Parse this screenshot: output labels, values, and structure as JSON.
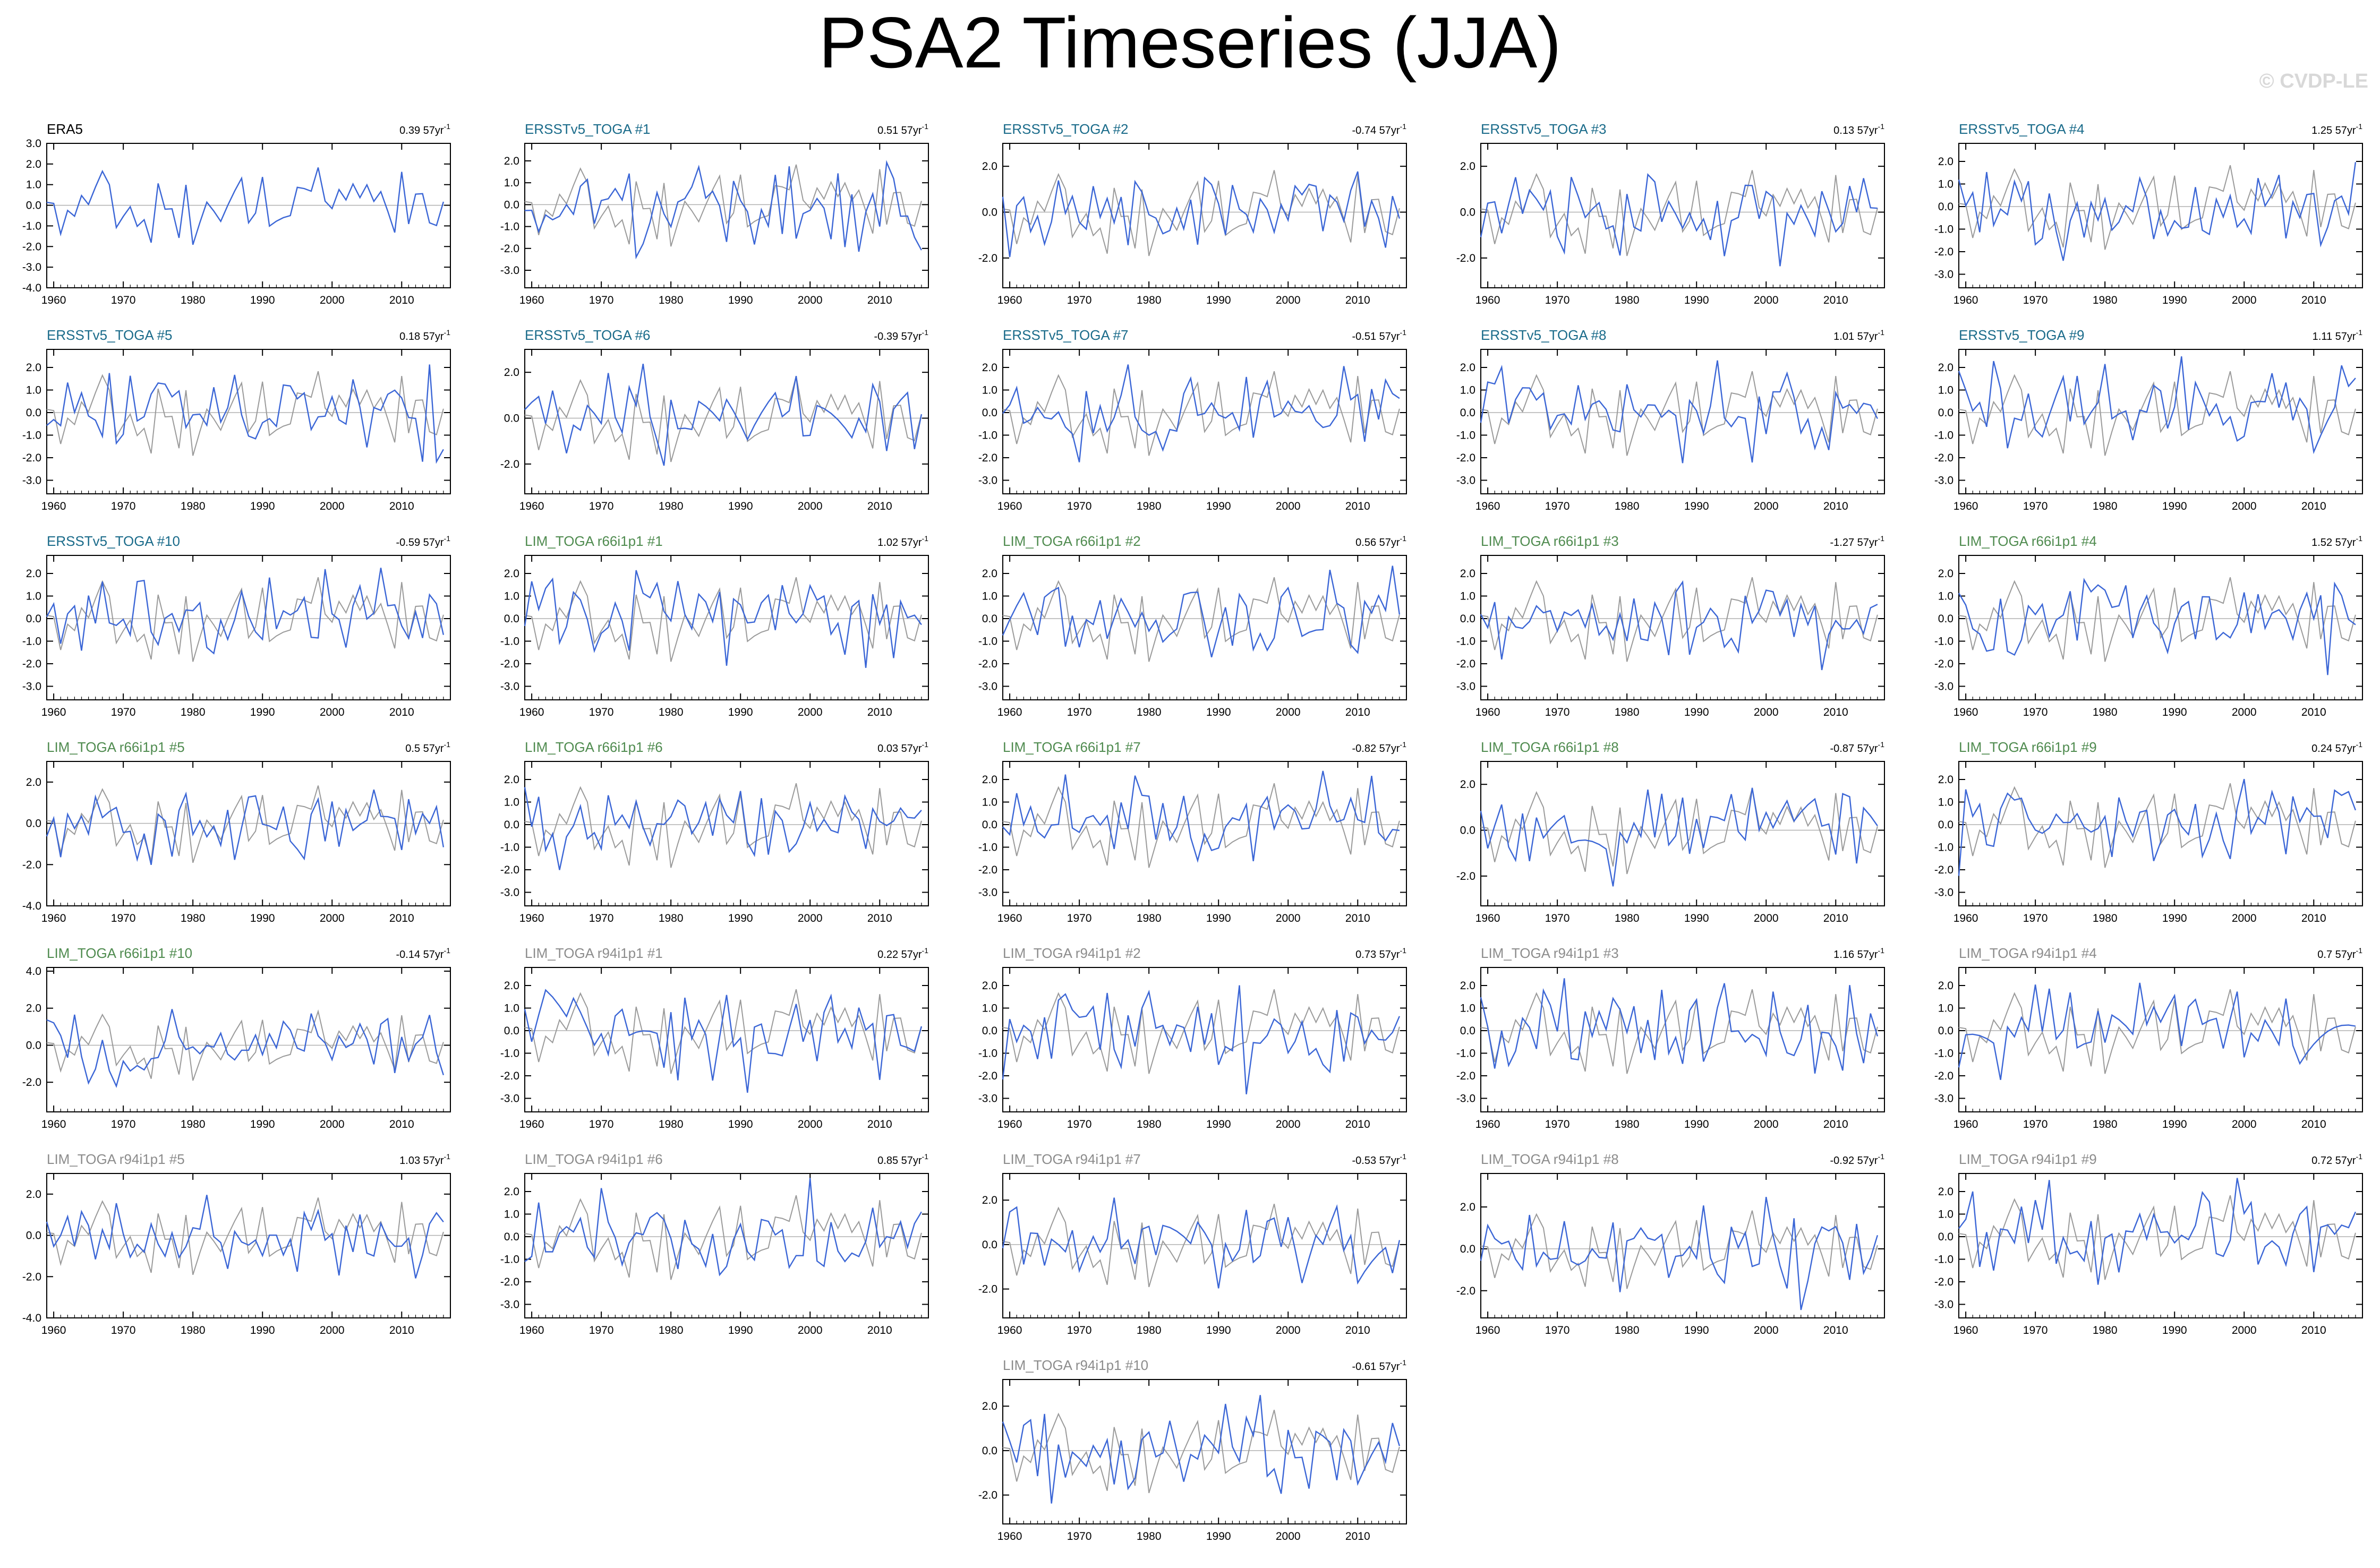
{
  "title": "PSA2 Timeseries (JJA)",
  "watermark": "© CVDP-LE",
  "trend_unit": "57yr",
  "trend_exponent": "-1",
  "colors": {
    "reference": "#9a9a9a",
    "model": "#3b66d6",
    "title_ersst": "#1a6b8a",
    "title_lim66": "#4f8b4f",
    "title_lim94": "#8c8c8c",
    "title_era5": "#000000"
  },
  "chart_data": [
    {
      "type": "line",
      "title": "ERA5",
      "trend": "0.39",
      "title_class": "era5",
      "ylim": [
        -4.0,
        3.0
      ],
      "yticks": [
        "3.0",
        "2.0",
        "1.0",
        "0.0",
        "-1.0",
        "-2.0",
        "-3.0",
        "-4.0"
      ],
      "xticks": [
        "1960",
        "1970",
        "1980",
        "1990",
        "2000",
        "2010"
      ],
      "xlim": [
        1959,
        2017
      ],
      "seed": 1
    },
    {
      "type": "line",
      "title": "ERSSTv5_TOGA #1",
      "trend": "0.51",
      "title_class": "ersst",
      "ylim": [
        -3.8,
        2.8
      ],
      "yticks": [
        "2.0",
        "1.0",
        "0.0",
        "-1.0",
        "-2.0",
        "-3.0"
      ],
      "xticks": [
        "1960",
        "1970",
        "1980",
        "1990",
        "2000",
        "2010"
      ],
      "xlim": [
        1959,
        2017
      ],
      "seed": 2
    },
    {
      "type": "line",
      "title": "ERSSTv5_TOGA #2",
      "trend": "-0.74",
      "title_class": "ersst",
      "ylim": [
        -3.3,
        3.0
      ],
      "yticks": [
        "2.0",
        "0.0",
        "-2.0"
      ],
      "xticks": [
        "1960",
        "1970",
        "1980",
        "1990",
        "2000",
        "2010"
      ],
      "xlim": [
        1959,
        2017
      ],
      "seed": 3
    },
    {
      "type": "line",
      "title": "ERSSTv5_TOGA #3",
      "trend": "0.13",
      "title_class": "ersst",
      "ylim": [
        -3.3,
        3.0
      ],
      "yticks": [
        "2.0",
        "0.0",
        "-2.0"
      ],
      "xticks": [
        "1960",
        "1970",
        "1980",
        "1990",
        "2000",
        "2010"
      ],
      "xlim": [
        1959,
        2017
      ],
      "seed": 4
    },
    {
      "type": "line",
      "title": "ERSSTv5_TOGA #4",
      "trend": "1.25",
      "title_class": "ersst",
      "ylim": [
        -3.6,
        2.8
      ],
      "yticks": [
        "2.0",
        "1.0",
        "0.0",
        "-1.0",
        "-2.0",
        "-3.0"
      ],
      "xticks": [
        "1960",
        "1970",
        "1980",
        "1990",
        "2000",
        "2010"
      ],
      "xlim": [
        1959,
        2017
      ],
      "seed": 5
    },
    {
      "type": "line",
      "title": "ERSSTv5_TOGA #5",
      "trend": "0.18",
      "title_class": "ersst",
      "ylim": [
        -3.6,
        2.8
      ],
      "yticks": [
        "2.0",
        "1.0",
        "0.0",
        "-1.0",
        "-2.0",
        "-3.0"
      ],
      "xticks": [
        "1960",
        "1970",
        "1980",
        "1990",
        "2000",
        "2010"
      ],
      "xlim": [
        1959,
        2017
      ],
      "seed": 6
    },
    {
      "type": "line",
      "title": "ERSSTv5_TOGA #6",
      "trend": "-0.39",
      "title_class": "ersst",
      "ylim": [
        -3.3,
        3.0
      ],
      "yticks": [
        "2.0",
        "0.0",
        "-2.0"
      ],
      "xticks": [
        "1960",
        "1970",
        "1980",
        "1990",
        "2000",
        "2010"
      ],
      "xlim": [
        1959,
        2017
      ],
      "seed": 7
    },
    {
      "type": "line",
      "title": "ERSSTv5_TOGA #7",
      "trend": "-0.51",
      "title_class": "ersst",
      "ylim": [
        -3.6,
        2.8
      ],
      "yticks": [
        "2.0",
        "1.0",
        "0.0",
        "-1.0",
        "-2.0",
        "-3.0"
      ],
      "xticks": [
        "1960",
        "1970",
        "1980",
        "1990",
        "2000",
        "2010"
      ],
      "xlim": [
        1959,
        2017
      ],
      "seed": 8
    },
    {
      "type": "line",
      "title": "ERSSTv5_TOGA #8",
      "trend": "1.01",
      "title_class": "ersst",
      "ylim": [
        -3.6,
        2.8
      ],
      "yticks": [
        "2.0",
        "1.0",
        "0.0",
        "-1.0",
        "-2.0",
        "-3.0"
      ],
      "xticks": [
        "1960",
        "1970",
        "1980",
        "1990",
        "2000",
        "2010"
      ],
      "xlim": [
        1959,
        2017
      ],
      "seed": 9
    },
    {
      "type": "line",
      "title": "ERSSTv5_TOGA #9",
      "trend": "1.11",
      "title_class": "ersst",
      "ylim": [
        -3.6,
        2.8
      ],
      "yticks": [
        "2.0",
        "1.0",
        "0.0",
        "-1.0",
        "-2.0",
        "-3.0"
      ],
      "xticks": [
        "1960",
        "1970",
        "1980",
        "1990",
        "2000",
        "2010"
      ],
      "xlim": [
        1959,
        2017
      ],
      "seed": 10
    },
    {
      "type": "line",
      "title": "ERSSTv5_TOGA #10",
      "trend": "-0.59",
      "title_class": "ersst",
      "ylim": [
        -3.6,
        2.8
      ],
      "yticks": [
        "2.0",
        "1.0",
        "0.0",
        "-1.0",
        "-2.0",
        "-3.0"
      ],
      "xticks": [
        "1960",
        "1970",
        "1980",
        "1990",
        "2000",
        "2010"
      ],
      "xlim": [
        1959,
        2017
      ],
      "seed": 11
    },
    {
      "type": "line",
      "title": "LIM_TOGA r66i1p1 #1",
      "trend": "1.02",
      "title_class": "lim66",
      "ylim": [
        -3.6,
        2.8
      ],
      "yticks": [
        "2.0",
        "1.0",
        "0.0",
        "-1.0",
        "-2.0",
        "-3.0"
      ],
      "xticks": [
        "1960",
        "1970",
        "1980",
        "1990",
        "2000",
        "2010"
      ],
      "xlim": [
        1959,
        2017
      ],
      "seed": 12
    },
    {
      "type": "line",
      "title": "LIM_TOGA r66i1p1 #2",
      "trend": "0.56",
      "title_class": "lim66",
      "ylim": [
        -3.6,
        2.8
      ],
      "yticks": [
        "2.0",
        "1.0",
        "0.0",
        "-1.0",
        "-2.0",
        "-3.0"
      ],
      "xticks": [
        "1960",
        "1970",
        "1980",
        "1990",
        "2000",
        "2010"
      ],
      "xlim": [
        1959,
        2017
      ],
      "seed": 13
    },
    {
      "type": "line",
      "title": "LIM_TOGA r66i1p1 #3",
      "trend": "-1.27",
      "title_class": "lim66",
      "ylim": [
        -3.6,
        2.8
      ],
      "yticks": [
        "2.0",
        "1.0",
        "0.0",
        "-1.0",
        "-2.0",
        "-3.0"
      ],
      "xticks": [
        "1960",
        "1970",
        "1980",
        "1990",
        "2000",
        "2010"
      ],
      "xlim": [
        1959,
        2017
      ],
      "seed": 14
    },
    {
      "type": "line",
      "title": "LIM_TOGA r66i1p1 #4",
      "trend": "1.52",
      "title_class": "lim66",
      "ylim": [
        -3.6,
        2.8
      ],
      "yticks": [
        "2.0",
        "1.0",
        "0.0",
        "-1.0",
        "-2.0",
        "-3.0"
      ],
      "xticks": [
        "1960",
        "1970",
        "1980",
        "1990",
        "2000",
        "2010"
      ],
      "xlim": [
        1959,
        2017
      ],
      "seed": 15
    },
    {
      "type": "line",
      "title": "LIM_TOGA r66i1p1 #5",
      "trend": "0.5",
      "title_class": "lim66",
      "ylim": [
        -4.0,
        3.0
      ],
      "yticks": [
        "2.0",
        "0.0",
        "-2.0",
        "-4.0"
      ],
      "xticks": [
        "1960",
        "1970",
        "1980",
        "1990",
        "2000",
        "2010"
      ],
      "xlim": [
        1959,
        2017
      ],
      "seed": 16
    },
    {
      "type": "line",
      "title": "LIM_TOGA r66i1p1 #6",
      "trend": "0.03",
      "title_class": "lim66",
      "ylim": [
        -3.6,
        2.8
      ],
      "yticks": [
        "2.0",
        "1.0",
        "0.0",
        "-1.0",
        "-2.0",
        "-3.0"
      ],
      "xticks": [
        "1960",
        "1970",
        "1980",
        "1990",
        "2000",
        "2010"
      ],
      "xlim": [
        1959,
        2017
      ],
      "seed": 17
    },
    {
      "type": "line",
      "title": "LIM_TOGA r66i1p1 #7",
      "trend": "-0.82",
      "title_class": "lim66",
      "ylim": [
        -3.6,
        2.8
      ],
      "yticks": [
        "2.0",
        "1.0",
        "0.0",
        "-1.0",
        "-2.0",
        "-3.0"
      ],
      "xticks": [
        "1960",
        "1970",
        "1980",
        "1990",
        "2000",
        "2010"
      ],
      "xlim": [
        1959,
        2017
      ],
      "seed": 18
    },
    {
      "type": "line",
      "title": "LIM_TOGA r66i1p1 #8",
      "trend": "-0.87",
      "title_class": "lim66",
      "ylim": [
        -3.3,
        3.0
      ],
      "yticks": [
        "2.0",
        "0.0",
        "-2.0"
      ],
      "xticks": [
        "1960",
        "1970",
        "1980",
        "1990",
        "2000",
        "2010"
      ],
      "xlim": [
        1959,
        2017
      ],
      "seed": 19
    },
    {
      "type": "line",
      "title": "LIM_TOGA r66i1p1 #9",
      "trend": "0.24",
      "title_class": "lim66",
      "ylim": [
        -3.6,
        2.8
      ],
      "yticks": [
        "2.0",
        "1.0",
        "0.0",
        "-1.0",
        "-2.0",
        "-3.0"
      ],
      "xticks": [
        "1960",
        "1970",
        "1980",
        "1990",
        "2000",
        "2010"
      ],
      "xlim": [
        1959,
        2017
      ],
      "seed": 20
    },
    {
      "type": "line",
      "title": "LIM_TOGA r66i1p1 #10",
      "trend": "-0.14",
      "title_class": "lim66",
      "ylim": [
        -3.6,
        4.2
      ],
      "yticks": [
        "4.0",
        "2.0",
        "0.0",
        "-2.0"
      ],
      "xticks": [
        "1960",
        "1970",
        "1980",
        "1990",
        "2000",
        "2010"
      ],
      "xlim": [
        1959,
        2017
      ],
      "seed": 21
    },
    {
      "type": "line",
      "title": "LIM_TOGA r94i1p1 #1",
      "trend": "0.22",
      "title_class": "lim94",
      "ylim": [
        -3.6,
        2.8
      ],
      "yticks": [
        "2.0",
        "1.0",
        "0.0",
        "-1.0",
        "-2.0",
        "-3.0"
      ],
      "xticks": [
        "1960",
        "1970",
        "1980",
        "1990",
        "2000",
        "2010"
      ],
      "xlim": [
        1959,
        2017
      ],
      "seed": 22
    },
    {
      "type": "line",
      "title": "LIM_TOGA r94i1p1 #2",
      "trend": "0.73",
      "title_class": "lim94",
      "ylim": [
        -3.6,
        2.8
      ],
      "yticks": [
        "2.0",
        "1.0",
        "0.0",
        "-1.0",
        "-2.0",
        "-3.0"
      ],
      "xticks": [
        "1960",
        "1970",
        "1980",
        "1990",
        "2000",
        "2010"
      ],
      "xlim": [
        1959,
        2017
      ],
      "seed": 23
    },
    {
      "type": "line",
      "title": "LIM_TOGA r94i1p1 #3",
      "trend": "1.16",
      "title_class": "lim94",
      "ylim": [
        -3.6,
        2.8
      ],
      "yticks": [
        "2.0",
        "1.0",
        "0.0",
        "-1.0",
        "-2.0",
        "-3.0"
      ],
      "xticks": [
        "1960",
        "1970",
        "1980",
        "1990",
        "2000",
        "2010"
      ],
      "xlim": [
        1959,
        2017
      ],
      "seed": 24
    },
    {
      "type": "line",
      "title": "LIM_TOGA r94i1p1 #4",
      "trend": "0.7",
      "title_class": "lim94",
      "ylim": [
        -3.6,
        2.8
      ],
      "yticks": [
        "2.0",
        "1.0",
        "0.0",
        "-1.0",
        "-2.0",
        "-3.0"
      ],
      "xticks": [
        "1960",
        "1970",
        "1980",
        "1990",
        "2000",
        "2010"
      ],
      "xlim": [
        1959,
        2017
      ],
      "seed": 25
    },
    {
      "type": "line",
      "title": "LIM_TOGA r94i1p1 #5",
      "trend": "1.03",
      "title_class": "lim94",
      "ylim": [
        -4.0,
        3.0
      ],
      "yticks": [
        "2.0",
        "0.0",
        "-2.0",
        "-4.0"
      ],
      "xticks": [
        "1960",
        "1970",
        "1980",
        "1990",
        "2000",
        "2010"
      ],
      "xlim": [
        1959,
        2017
      ],
      "seed": 26
    },
    {
      "type": "line",
      "title": "LIM_TOGA r94i1p1 #6",
      "trend": "0.85",
      "title_class": "lim94",
      "ylim": [
        -3.6,
        2.8
      ],
      "yticks": [
        "2.0",
        "1.0",
        "0.0",
        "-1.0",
        "-2.0",
        "-3.0"
      ],
      "xticks": [
        "1960",
        "1970",
        "1980",
        "1990",
        "2000",
        "2010"
      ],
      "xlim": [
        1959,
        2017
      ],
      "seed": 27
    },
    {
      "type": "line",
      "title": "LIM_TOGA r94i1p1 #7",
      "trend": "-0.53",
      "title_class": "lim94",
      "ylim": [
        -3.3,
        3.2
      ],
      "yticks": [
        "2.0",
        "0.0",
        "-2.0"
      ],
      "xticks": [
        "1960",
        "1970",
        "1980",
        "1990",
        "2000",
        "2010"
      ],
      "xlim": [
        1959,
        2017
      ],
      "seed": 28
    },
    {
      "type": "line",
      "title": "LIM_TOGA r94i1p1 #8",
      "trend": "-0.92",
      "title_class": "lim94",
      "ylim": [
        -3.3,
        3.6
      ],
      "yticks": [
        "2.0",
        "0.0",
        "-2.0"
      ],
      "xticks": [
        "1960",
        "1970",
        "1980",
        "1990",
        "2000",
        "2010"
      ],
      "xlim": [
        1959,
        2017
      ],
      "seed": 29
    },
    {
      "type": "line",
      "title": "LIM_TOGA r94i1p1 #9",
      "trend": "0.72",
      "title_class": "lim94",
      "ylim": [
        -3.6,
        2.8
      ],
      "yticks": [
        "2.0",
        "1.0",
        "0.0",
        "-1.0",
        "-2.0",
        "-3.0"
      ],
      "xticks": [
        "1960",
        "1970",
        "1980",
        "1990",
        "2000",
        "2010"
      ],
      "xlim": [
        1959,
        2017
      ],
      "seed": 30
    },
    {
      "type": "line",
      "title": "LIM_TOGA r94i1p1 #10",
      "trend": "-0.61",
      "title_class": "lim94",
      "ylim": [
        -3.3,
        3.2
      ],
      "yticks": [
        "2.0",
        "0.0",
        "-2.0"
      ],
      "xticks": [
        "1960",
        "1970",
        "1980",
        "1990",
        "2000",
        "2010"
      ],
      "xlim": [
        1959,
        2017
      ],
      "seed": 31
    }
  ]
}
